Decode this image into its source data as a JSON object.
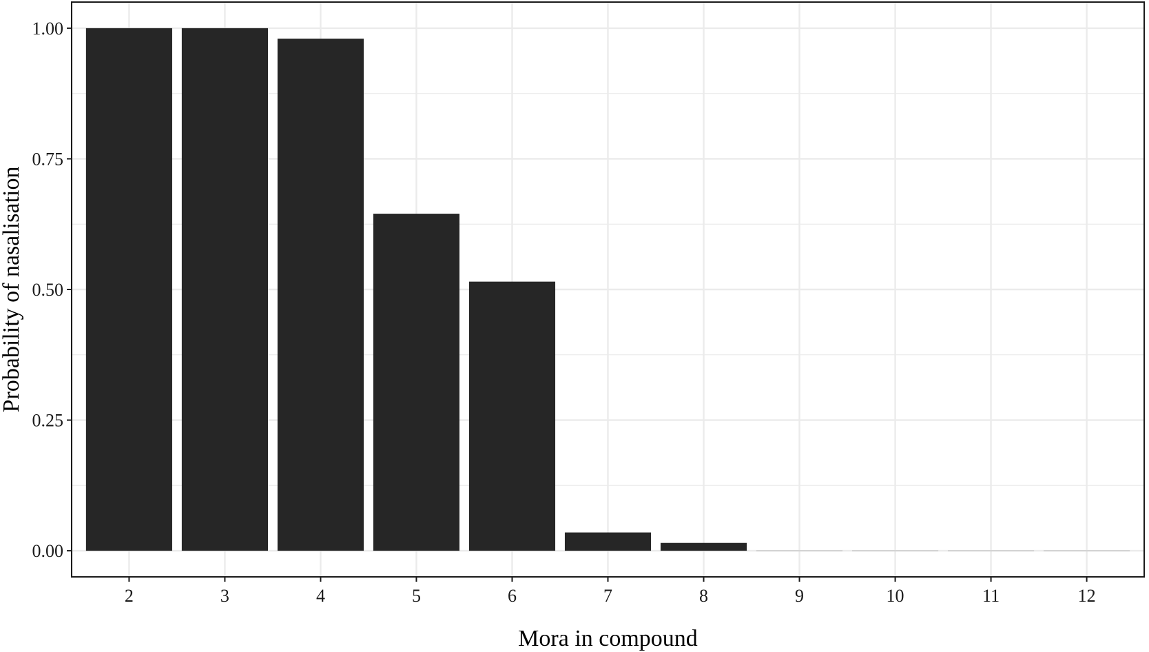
{
  "chart_data": {
    "type": "bar",
    "categories": [
      "2",
      "3",
      "4",
      "5",
      "6",
      "7",
      "8",
      "9",
      "10",
      "11",
      "12"
    ],
    "values": [
      1.0,
      1.0,
      0.98,
      0.645,
      0.515,
      0.035,
      0.015,
      0.0,
      0.0,
      0.0,
      0.0
    ],
    "title": "",
    "xlabel": "Mora in compound",
    "ylabel": "Probability of nasalisation",
    "ylim": [
      -0.05,
      1.05
    ],
    "yticks": [
      0.0,
      0.25,
      0.5,
      0.75,
      1.0
    ],
    "ytick_labels": [
      "0.00",
      "0.25",
      "0.50",
      "0.75",
      "1.00"
    ],
    "grid": true,
    "legend": "none",
    "colors": {
      "bar": "#262626",
      "grid": "#ebebeb",
      "panel_border": "#1a1a1a",
      "background": "#ffffff"
    }
  }
}
